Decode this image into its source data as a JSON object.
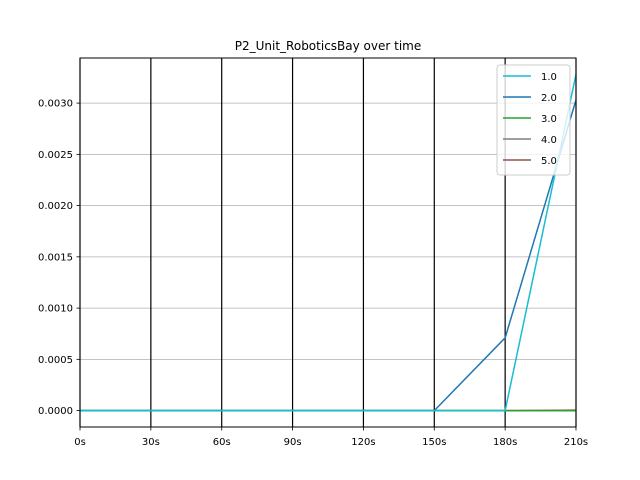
{
  "chart_data": {
    "type": "line",
    "title": "P2_Unit_RoboticsBay over time",
    "xlabel": "",
    "ylabel": "",
    "x": [
      0,
      30,
      60,
      90,
      120,
      150,
      180,
      210
    ],
    "x_tick_labels": [
      "0s",
      "30s",
      "60s",
      "90s",
      "120s",
      "150s",
      "180s",
      "210s"
    ],
    "xlim": [
      0,
      210
    ],
    "y_ticks": [
      0.0,
      0.0005,
      0.001,
      0.0015,
      0.002,
      0.0025,
      0.003
    ],
    "y_tick_labels": [
      "0.0000",
      "0.0005",
      "0.0010",
      "0.0015",
      "0.0020",
      "0.0025",
      "0.0030"
    ],
    "ylim": [
      -0.00016,
      0.00344
    ],
    "grid": "horizontal gridlines; vertical black lines at each x tick",
    "legend_position": "top-right",
    "series": [
      {
        "name": "1.0",
        "color": "#17becf",
        "values": [
          0,
          0,
          0,
          0,
          0,
          0,
          0,
          0.00328
        ]
      },
      {
        "name": "2.0",
        "color": "#1f77b4",
        "values": [
          0,
          0,
          0,
          0,
          0,
          0,
          0.00071,
          0.00303
        ]
      },
      {
        "name": "3.0",
        "color": "#2ca02c",
        "values": [
          0,
          0,
          0,
          0,
          0,
          0,
          0,
          0
        ]
      },
      {
        "name": "4.0",
        "color": "#7f7f7f",
        "values": [
          0,
          0,
          0,
          0,
          0,
          0,
          0,
          0
        ]
      },
      {
        "name": "5.0",
        "color": "#8c564b",
        "values": [
          0,
          0,
          0,
          0,
          0,
          0,
          0,
          5e-06
        ]
      }
    ]
  }
}
